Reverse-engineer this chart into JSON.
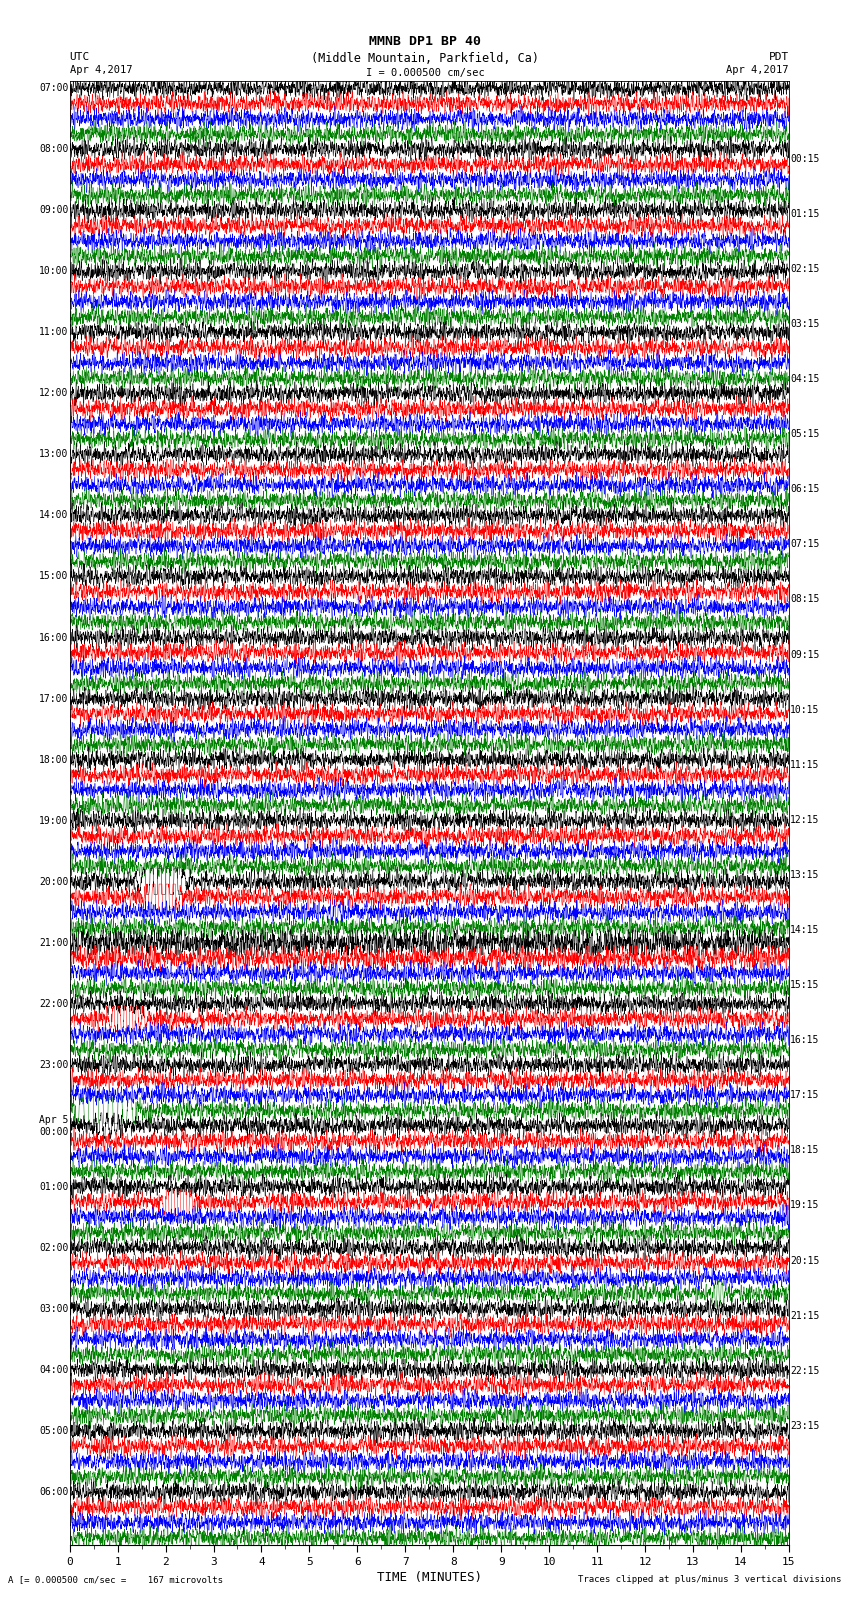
{
  "title_line1": "MMNB DP1 BP 40",
  "title_line2": "(Middle Mountain, Parkfield, Ca)",
  "scale_label": "I = 0.000500 cm/sec",
  "left_timezone": "UTC",
  "right_timezone": "PDT",
  "left_date": "Apr 4,2017",
  "right_date": "Apr 4,2017",
  "bottom_left": "A [= 0.000500 cm/sec =    167 microvolts",
  "bottom_right": "Traces clipped at plus/minus 3 vertical divisions",
  "xlabel": "TIME (MINUTES)",
  "time_minutes": 15,
  "colors": [
    "black",
    "red",
    "blue",
    "green"
  ],
  "bg_color": "white",
  "left_times": [
    "07:00",
    "08:00",
    "09:00",
    "10:00",
    "11:00",
    "12:00",
    "13:00",
    "14:00",
    "15:00",
    "16:00",
    "17:00",
    "18:00",
    "19:00",
    "20:00",
    "21:00",
    "22:00",
    "23:00",
    "Apr 5\n00:00",
    "01:00",
    "02:00",
    "03:00",
    "04:00",
    "05:00",
    "06:00"
  ],
  "right_times": [
    "00:15",
    "01:15",
    "02:15",
    "03:15",
    "04:15",
    "05:15",
    "06:15",
    "07:15",
    "08:15",
    "09:15",
    "10:15",
    "11:15",
    "12:15",
    "13:15",
    "14:15",
    "15:15",
    "16:15",
    "17:15",
    "18:15",
    "19:15",
    "20:15",
    "21:15",
    "22:15",
    "23:15"
  ],
  "num_groups": 24,
  "traces_per_group": 4,
  "samples_per_trace": 4500,
  "noise_amp": 0.28,
  "clip_divisions": 3
}
